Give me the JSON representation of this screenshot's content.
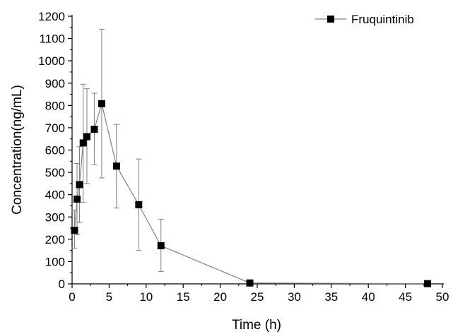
{
  "chart_data": {
    "type": "line",
    "xlabel": "Time (h)",
    "ylabel": "Concentration(ng/mL)",
    "xlim": [
      0,
      50
    ],
    "ylim": [
      0,
      1200
    ],
    "x_ticks": [
      0,
      5,
      10,
      15,
      20,
      25,
      30,
      35,
      40,
      45,
      50
    ],
    "y_ticks": [
      0,
      100,
      200,
      300,
      400,
      500,
      600,
      700,
      800,
      900,
      1000,
      1100,
      1200
    ],
    "legend_position": "top-right",
    "grid": false,
    "series": [
      {
        "name": "Fruquintinib",
        "color": "#808080",
        "marker": "square",
        "marker_color": "#000000",
        "x": [
          0.33,
          0.67,
          1,
          1.5,
          2,
          3,
          4,
          6,
          9,
          12,
          24,
          48
        ],
        "y": [
          240,
          380,
          445,
          632,
          660,
          693,
          808,
          528,
          355,
          171,
          4,
          1
        ],
        "err_low": [
          160,
          220,
          275,
          365,
          450,
          535,
          475,
          340,
          150,
          55,
          0,
          0
        ],
        "err_high": [
          330,
          540,
          615,
          895,
          875,
          855,
          1142,
          715,
          560,
          290,
          8,
          2
        ]
      }
    ]
  }
}
